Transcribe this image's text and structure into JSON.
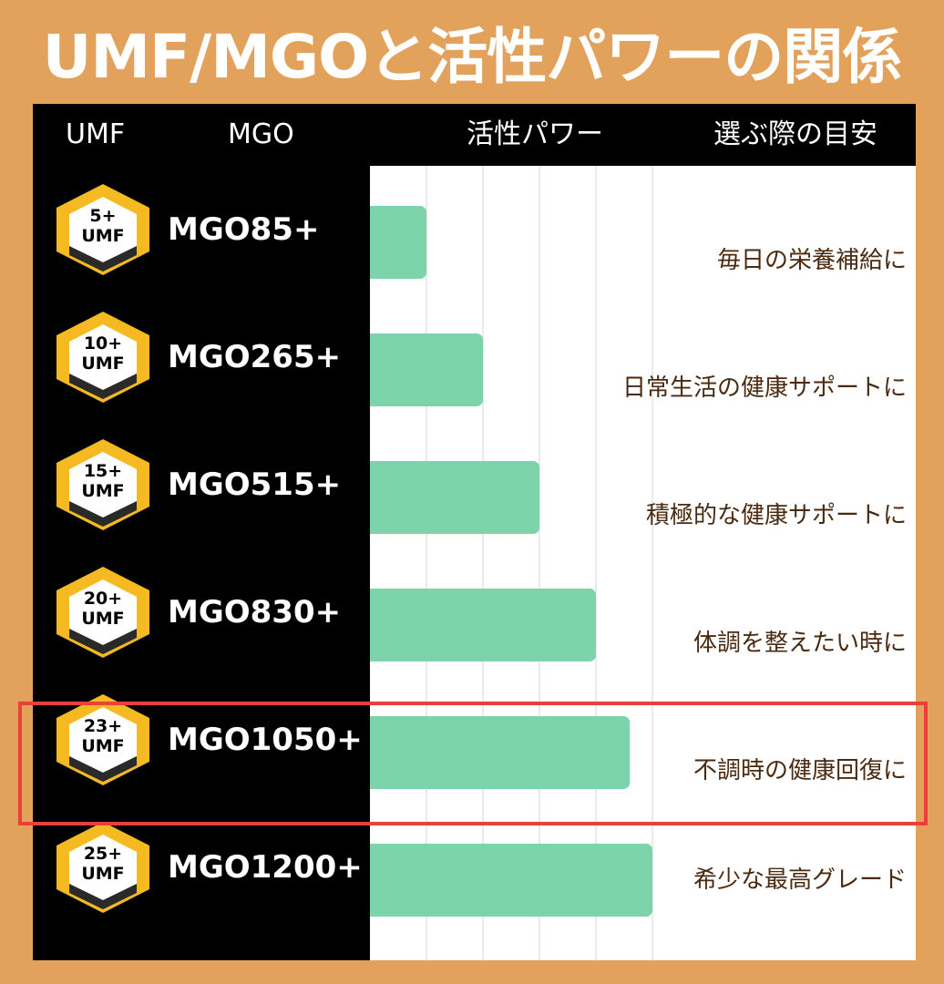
{
  "title": "UMF/MGOと活性パワーの関係",
  "header": {
    "umf": "UMF",
    "mgo": "MGO",
    "power": "活性パワー",
    "guide": "選ぶ際の目安"
  },
  "colors": {
    "background": "#E2A25C",
    "bar": "#7DD3AA",
    "badge_yellow": "#F5B921",
    "guide_text": "#4A2A10",
    "highlight": "#E8403A"
  },
  "chart_data": {
    "type": "bar",
    "orientation": "horizontal",
    "categories": [
      "MGO85+",
      "MGO265+",
      "MGO515+",
      "MGO830+",
      "MGO1050+",
      "MGO1200+"
    ],
    "umf_badges": [
      "5+",
      "10+",
      "15+",
      "20+",
      "23+",
      "25+"
    ],
    "umf_unit": "UMF",
    "series": [
      {
        "values": [
          1,
          2,
          3,
          4,
          4.6,
          5
        ]
      }
    ],
    "xlim": [
      0,
      5
    ],
    "grid": true,
    "annotations": [
      "毎日の栄養補給に",
      "日常生活の健康サポートに",
      "積極的な健康サポートに",
      "体調を整えたい時に",
      "不調時の健康回復に",
      "希少な最高グレード"
    ],
    "highlighted_category": "MGO1050+"
  }
}
